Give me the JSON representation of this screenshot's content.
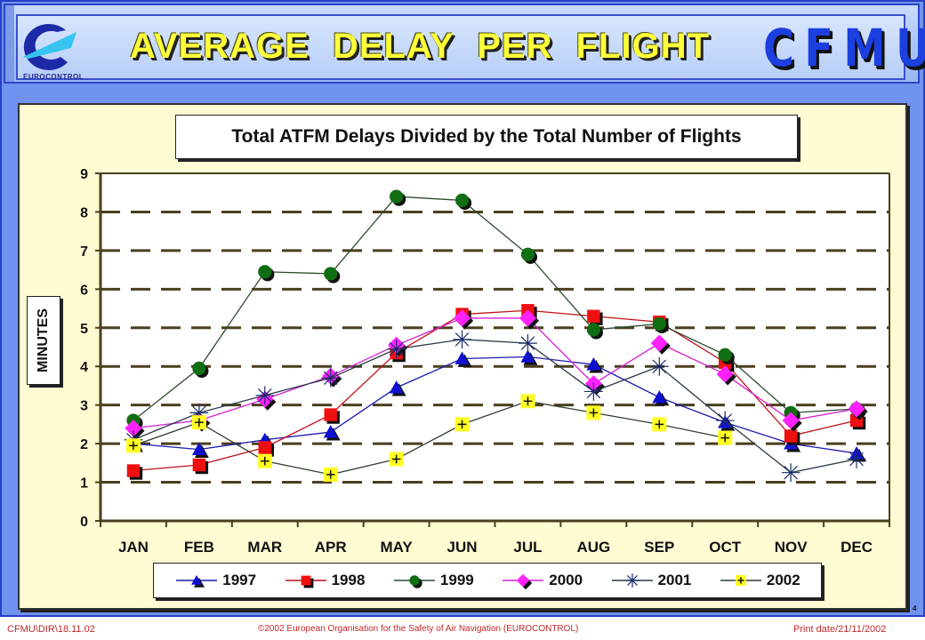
{
  "header": {
    "logo_text": "EUROCONTROL",
    "title": "AVERAGE DELAY PER FLIGHT",
    "brand": "CFMU"
  },
  "footer": {
    "left": "CFMU\\DIR\\18.11.02",
    "middle": "©2002 European Organisation for the Safety of Air Navigation (EUROCONTROL)",
    "right": "Print date/21/11/2002",
    "page_number": "4"
  },
  "colors": {
    "1997": "#1010d0",
    "1998": "#ee1010",
    "1999": "#0f6e12",
    "2000": "#ff22ff",
    "2001": "#1a2a6a",
    "2002": "#ffff22",
    "panel_bg": "#fffcd3",
    "frame_bg": "#6f93ee"
  },
  "chart_data": {
    "type": "line",
    "title": "Total ATFM Delays Divided by the Total Number of Flights",
    "xlabel": "",
    "ylabel": "MINUTES",
    "ylim": [
      0,
      9
    ],
    "yticks": [
      0,
      1,
      2,
      3,
      4,
      5,
      6,
      7,
      8,
      9
    ],
    "grid": "horizontal dashed",
    "legend_position": "bottom",
    "categories": [
      "JAN",
      "FEB",
      "MAR",
      "APR",
      "MAY",
      "JUN",
      "JUL",
      "AUG",
      "SEP",
      "OCT",
      "NOV",
      "DEC"
    ],
    "series": [
      {
        "name": "1997",
        "marker": "triangle",
        "values": [
          2.0,
          1.85,
          2.1,
          2.3,
          3.45,
          4.2,
          4.25,
          4.05,
          3.2,
          2.55,
          2.0,
          1.75
        ]
      },
      {
        "name": "1998",
        "marker": "square",
        "values": [
          1.3,
          1.45,
          1.9,
          2.75,
          4.35,
          5.35,
          5.45,
          5.3,
          5.15,
          4.1,
          2.2,
          2.6
        ]
      },
      {
        "name": "1999",
        "marker": "circle",
        "values": [
          2.6,
          3.95,
          6.45,
          6.4,
          8.4,
          8.3,
          6.9,
          4.95,
          5.1,
          4.3,
          2.8,
          2.9
        ]
      },
      {
        "name": "2000",
        "marker": "diamond",
        "values": [
          2.4,
          2.6,
          3.15,
          3.75,
          4.55,
          5.25,
          5.25,
          3.55,
          4.6,
          3.8,
          2.6,
          2.9
        ]
      },
      {
        "name": "2001",
        "marker": "star",
        "values": [
          2.1,
          2.8,
          3.25,
          3.7,
          4.45,
          4.7,
          4.6,
          3.35,
          4.0,
          2.6,
          1.25,
          1.6
        ]
      },
      {
        "name": "2002",
        "marker": "plus-box",
        "values": [
          1.95,
          2.55,
          1.55,
          1.2,
          1.6,
          2.5,
          3.1,
          2.8,
          2.5,
          2.15,
          null,
          null
        ]
      }
    ]
  }
}
